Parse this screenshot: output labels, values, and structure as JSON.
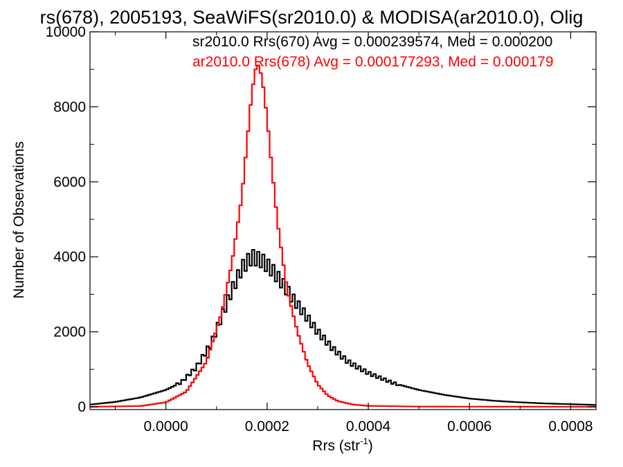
{
  "chart_data": {
    "type": "histogram",
    "title": "rs(678), 2005193, SeaWiFS(sr2010.0) & MODISA(ar2010.0), Olig",
    "xlabel": "Rrs (str",
    "xlabel_sup": "-1",
    "xlabel_close": ")",
    "ylabel": "Number of Observations",
    "xlim": [
      -0.00015,
      0.00085
    ],
    "ylim": [
      0,
      10000
    ],
    "x_ticks": [
      0.0,
      0.0002,
      0.0004,
      0.0006,
      0.0008
    ],
    "x_tick_labels": [
      "0.0000",
      "0.0002",
      "0.0004",
      "0.0006",
      "0.0008"
    ],
    "y_ticks": [
      0,
      2000,
      4000,
      6000,
      8000,
      10000
    ],
    "y_tick_labels": [
      "0",
      "2000",
      "4000",
      "6000",
      "8000",
      "10000"
    ],
    "annotations": [
      "sr2010.0 Rrs(670) Avg = 0.000239574, Med = 0.000200",
      "ar2010.0 Rrs(678) Avg = 0.000177293, Med = 0.000179"
    ],
    "series_colors": [
      "#000000",
      "#ff0000"
    ],
    "series": [
      {
        "name": "sr2010.0 Rrs(670)",
        "color": "#000000",
        "points": [
          [
            -0.00015,
            60
          ],
          [
            -0.0001,
            130
          ],
          [
            -5e-05,
            250
          ],
          [
            0.0,
            450
          ],
          [
            3e-05,
            650
          ],
          [
            6e-05,
            1050
          ],
          [
            9e-05,
            1700
          ],
          [
            0.00011,
            2400
          ],
          [
            0.00013,
            3100
          ],
          [
            0.00015,
            3700
          ],
          [
            0.00017,
            4000
          ],
          [
            0.00019,
            3900
          ],
          [
            0.00021,
            3650
          ],
          [
            0.00023,
            3300
          ],
          [
            0.00025,
            2900
          ],
          [
            0.00027,
            2550
          ],
          [
            0.0003,
            2000
          ],
          [
            0.00033,
            1550
          ],
          [
            0.00036,
            1200
          ],
          [
            0.0004,
            900
          ],
          [
            0.00045,
            630
          ],
          [
            0.0005,
            450
          ],
          [
            0.00055,
            320
          ],
          [
            0.0006,
            220
          ],
          [
            0.00065,
            160
          ],
          [
            0.0007,
            120
          ],
          [
            0.00075,
            90
          ],
          [
            0.0008,
            70
          ],
          [
            0.00085,
            50
          ]
        ]
      },
      {
        "name": "ar2010.0 Rrs(678)",
        "color": "#ff0000",
        "points": [
          [
            -0.00015,
            0
          ],
          [
            -5e-05,
            20
          ],
          [
            0.0,
            120
          ],
          [
            4e-05,
            400
          ],
          [
            8e-05,
            1200
          ],
          [
            0.00011,
            2500
          ],
          [
            0.00013,
            3800
          ],
          [
            0.00015,
            5600
          ],
          [
            0.00016,
            7000
          ],
          [
            0.00017,
            8400
          ],
          [
            0.00018,
            9200
          ],
          [
            0.00019,
            8800
          ],
          [
            0.0002,
            7700
          ],
          [
            0.00021,
            6300
          ],
          [
            0.00022,
            5000
          ],
          [
            0.00023,
            4000
          ],
          [
            0.00024,
            3100
          ],
          [
            0.00026,
            2000
          ],
          [
            0.00028,
            1150
          ],
          [
            0.0003,
            600
          ],
          [
            0.00032,
            300
          ],
          [
            0.00034,
            150
          ],
          [
            0.00037,
            60
          ],
          [
            0.0004,
            25
          ],
          [
            0.0005,
            5
          ],
          [
            0.00085,
            0
          ]
        ]
      }
    ]
  }
}
